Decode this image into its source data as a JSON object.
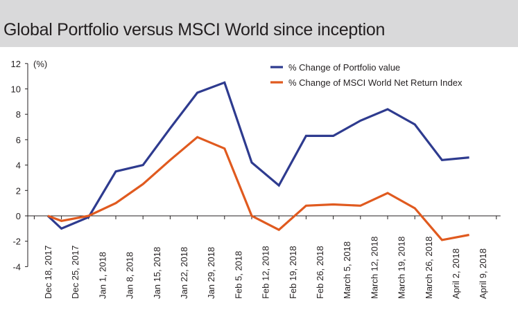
{
  "title": "Global Portfolio versus MSCI World since inception",
  "chart_data": {
    "type": "line",
    "title": "Global Portfolio versus MSCI World since inception",
    "unit_label": "(%)",
    "xlabel": "",
    "ylabel": "",
    "ylim": [
      -4,
      12
    ],
    "yticks": [
      12,
      10,
      8,
      6,
      4,
      2,
      0,
      -2,
      -4
    ],
    "categories": [
      "Dec 18, 2017",
      "Dec 25, 2017",
      "Jan 1, 2018",
      "Jan 8, 2018",
      "Jan 15, 2018",
      "Jan 22, 2018",
      "Jan 29, 2018",
      "Feb 5, 2018",
      "Feb 12, 2018",
      "Feb 19, 2018",
      "Feb 26, 2018",
      "March 5, 2018",
      "March 12, 2018",
      "March 19, 2018",
      "March 26, 2018",
      "April 2, 2018",
      "April 9, 2018"
    ],
    "x": [
      0,
      0.5,
      1.5,
      2.5,
      3.5,
      4.5,
      5.5,
      6.5,
      7.5,
      8.5,
      9.5,
      10.5,
      11.5,
      12.5,
      13.5,
      14.5,
      15.5,
      16
    ],
    "series": [
      {
        "name": "% Change of Portfolio value",
        "color": "#2e3b8f",
        "values": [
          0,
          -1.0,
          -0.1,
          3.5,
          4.0,
          6.9,
          9.7,
          10.5,
          4.2,
          2.4,
          6.3,
          6.3,
          7.5,
          8.4,
          7.2,
          4.4,
          4.6,
          null
        ]
      },
      {
        "name": "% Change of MSCI World Net Return Index",
        "color": "#e05a1f",
        "values": [
          0,
          -0.4,
          0.0,
          1.0,
          2.5,
          4.4,
          6.2,
          5.3,
          0.0,
          -1.1,
          0.8,
          0.9,
          0.8,
          1.8,
          0.6,
          -1.9,
          -1.5,
          null
        ]
      }
    ],
    "legend": "top-right",
    "grid": false
  }
}
